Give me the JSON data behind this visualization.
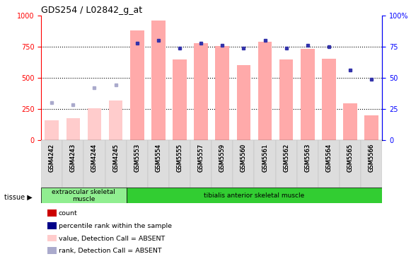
{
  "title": "GDS254 / L02842_g_at",
  "samples": [
    "GSM4242",
    "GSM4243",
    "GSM4244",
    "GSM4245",
    "GSM5553",
    "GSM5554",
    "GSM5555",
    "GSM5557",
    "GSM5559",
    "GSM5560",
    "GSM5561",
    "GSM5562",
    "GSM5563",
    "GSM5564",
    "GSM5565",
    "GSM5566"
  ],
  "bar_values": [
    160,
    175,
    255,
    315,
    880,
    960,
    645,
    780,
    755,
    600,
    790,
    645,
    730,
    650,
    295,
    195
  ],
  "dot_values": [
    30,
    28,
    42,
    44,
    78,
    80,
    74,
    78,
    76,
    74,
    80,
    74,
    76,
    75,
    56,
    49
  ],
  "bar_absent": [
    true,
    true,
    true,
    true,
    false,
    false,
    false,
    false,
    false,
    false,
    false,
    false,
    false,
    false,
    false,
    false
  ],
  "dot_absent": [
    true,
    true,
    true,
    true,
    false,
    false,
    false,
    false,
    false,
    false,
    false,
    false,
    false,
    false,
    false,
    false
  ],
  "tissue_groups": [
    {
      "label": "extraocular skeletal\nmuscle",
      "start": 0,
      "end": 4,
      "color": "#90ee90"
    },
    {
      "label": "tibialis anterior skeletal muscle",
      "start": 4,
      "end": 16,
      "color": "#32cd32"
    }
  ],
  "ylim_left": [
    0,
    1000
  ],
  "ylim_right": [
    0,
    100
  ],
  "yticks_left": [
    0,
    250,
    500,
    750,
    1000
  ],
  "yticks_right": [
    0,
    25,
    50,
    75,
    100
  ],
  "bar_color_present": "#ffaaaa",
  "bar_color_absent": "#ffcccc",
  "dot_color_present": "#3333aa",
  "dot_color_absent": "#aaaacc",
  "background_color": "#ffffff",
  "legend_items": [
    {
      "label": "count",
      "color": "#cc0000"
    },
    {
      "label": "percentile rank within the sample",
      "color": "#000088"
    },
    {
      "label": "value, Detection Call = ABSENT",
      "color": "#ffcccc"
    },
    {
      "label": "rank, Detection Call = ABSENT",
      "color": "#aaaacc"
    }
  ],
  "xlabel_fontsize": 6,
  "ylabel_left_color": "red",
  "ylabel_right_color": "blue",
  "tick_fontsize": 7,
  "title_fontsize": 9
}
